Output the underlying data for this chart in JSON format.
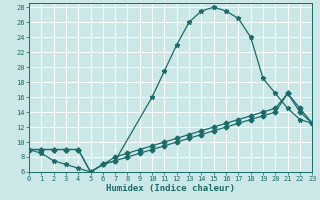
{
  "xlabel": "Humidex (Indice chaleur)",
  "bg_color": "#cce8e6",
  "line_color": "#1a6b6b",
  "grid_color": "#ffffff",
  "xlim": [
    0,
    23
  ],
  "ylim": [
    6,
    28.5
  ],
  "xticks": [
    0,
    1,
    2,
    3,
    4,
    5,
    6,
    7,
    8,
    9,
    10,
    11,
    12,
    13,
    14,
    15,
    16,
    17,
    18,
    19,
    20,
    21,
    22,
    23
  ],
  "yticks": [
    6,
    8,
    10,
    12,
    14,
    16,
    18,
    20,
    22,
    24,
    26,
    28
  ],
  "line1_x": [
    0,
    1,
    2,
    3,
    4,
    5,
    6,
    7,
    10,
    11,
    12,
    13,
    14,
    15,
    16,
    17,
    18,
    19,
    20,
    21,
    22,
    23
  ],
  "line1_y": [
    9.0,
    8.5,
    7.5,
    7.0,
    6.5,
    6.0,
    7.0,
    7.5,
    16.0,
    19.5,
    23.0,
    26.0,
    27.5,
    28.0,
    27.5,
    26.5,
    24.0,
    18.5,
    16.5,
    14.5,
    13.0,
    12.5
  ],
  "line2_x": [
    0,
    1,
    2,
    3,
    4,
    5,
    6,
    7,
    8,
    9,
    10,
    11,
    12,
    13,
    14,
    15,
    16,
    17,
    18,
    19,
    20,
    21,
    22,
    23
  ],
  "line2_y": [
    9.0,
    9.0,
    9.0,
    9.0,
    9.0,
    6.0,
    7.0,
    7.5,
    8.0,
    8.5,
    9.0,
    9.5,
    10.0,
    10.5,
    11.0,
    11.5,
    12.0,
    12.5,
    13.0,
    13.5,
    14.0,
    16.5,
    14.5,
    12.5
  ],
  "line3_x": [
    0,
    1,
    2,
    3,
    4,
    5,
    6,
    7,
    8,
    9,
    10,
    11,
    12,
    13,
    14,
    15,
    16,
    17,
    18,
    19,
    20,
    21,
    22,
    23
  ],
  "line3_y": [
    9.0,
    9.0,
    9.0,
    9.0,
    9.0,
    6.0,
    7.0,
    8.0,
    8.5,
    9.0,
    9.5,
    10.0,
    10.5,
    11.0,
    11.5,
    12.0,
    12.5,
    13.0,
    13.5,
    14.0,
    14.5,
    16.5,
    14.0,
    12.5
  ]
}
